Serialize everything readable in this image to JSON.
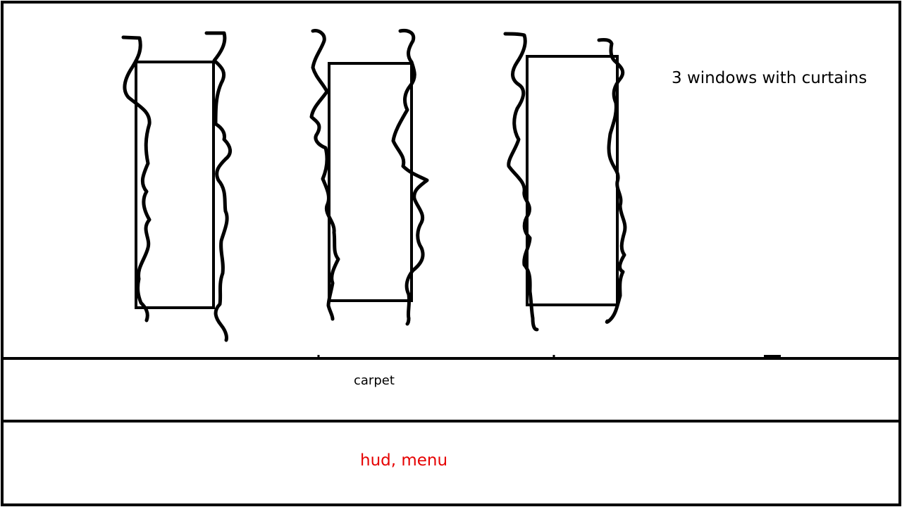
{
  "labels": {
    "room": "3 windows with curtains",
    "carpet": "carpet",
    "hud": "hud, menu"
  },
  "colors": {
    "ink": "#000000",
    "hud_text": "#e60000",
    "background": "#ffffff"
  }
}
